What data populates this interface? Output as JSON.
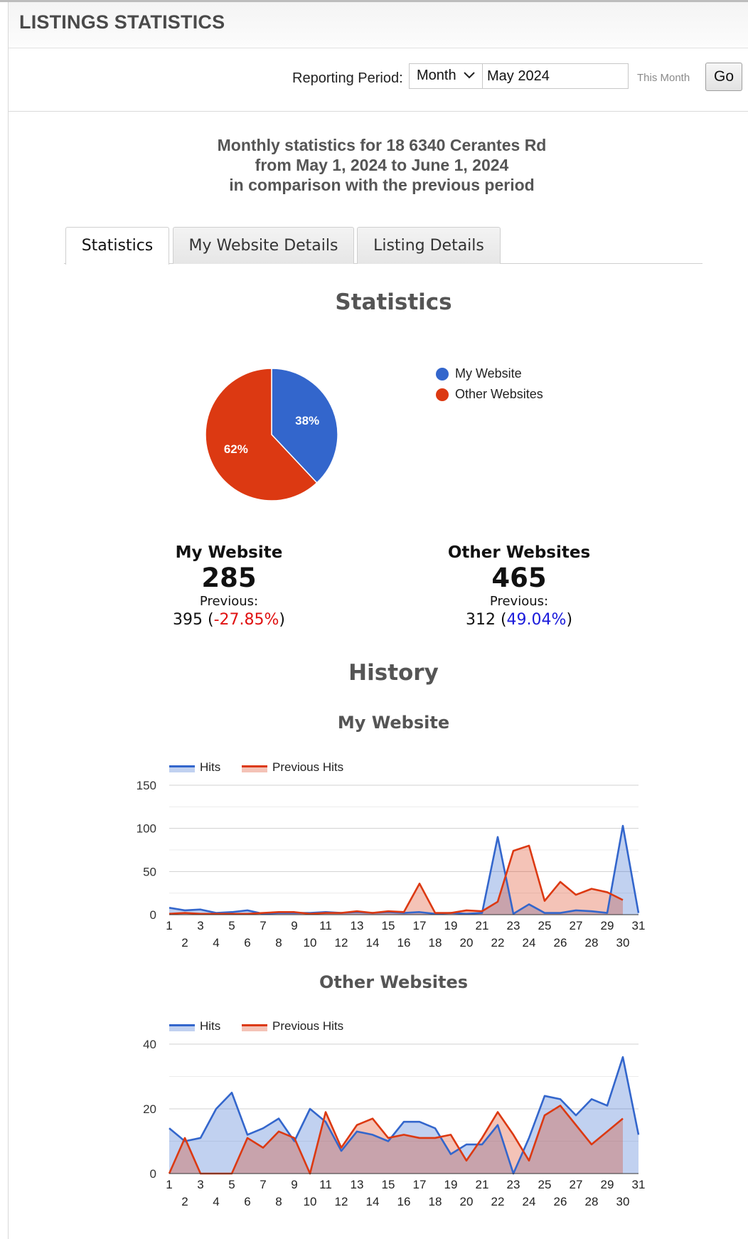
{
  "header": {
    "title": "LISTINGS STATISTICS"
  },
  "period": {
    "label": "Reporting Period:",
    "select_value": "Month",
    "date_value": "May 2024",
    "shortcut": "This Month",
    "go_label": "Go"
  },
  "summary": {
    "line1": "Monthly statistics for 18 6340 Cerantes Rd",
    "line2": "from May 1, 2024 to June 1, 2024",
    "line3": "in comparison with the previous period"
  },
  "tabs": [
    {
      "label": "Statistics",
      "active": true
    },
    {
      "label": "My Website Details",
      "active": false
    },
    {
      "label": "Listing Details",
      "active": false
    }
  ],
  "statistics": {
    "title": "Statistics",
    "legend": [
      {
        "label": "My Website",
        "color": "#3366cc"
      },
      {
        "label": "Other Websites",
        "color": "#dc3912"
      }
    ],
    "my_website": {
      "name": "My Website",
      "value": "285",
      "prev_label": "Previous:",
      "prev_value": "395",
      "change": "-27.85%"
    },
    "other_websites": {
      "name": "Other Websites",
      "value": "465",
      "prev_label": "Previous:",
      "prev_value": "312",
      "change": "49.04%"
    }
  },
  "history": {
    "title": "History"
  },
  "chart_data": [
    {
      "type": "pie",
      "labels": [
        "My Website",
        "Other Websites"
      ],
      "values": [
        38,
        62
      ],
      "value_labels": [
        "38%",
        "62%"
      ],
      "colors": [
        "#3366cc",
        "#dc3912"
      ],
      "legend": "right"
    },
    {
      "type": "area",
      "title": "My Website",
      "x": [
        1,
        2,
        3,
        4,
        5,
        6,
        7,
        8,
        9,
        10,
        11,
        12,
        13,
        14,
        15,
        16,
        17,
        18,
        19,
        20,
        21,
        22,
        23,
        24,
        25,
        26,
        27,
        28,
        29,
        30,
        31
      ],
      "series": [
        {
          "name": "Hits",
          "color": "#3366cc",
          "values": [
            8,
            5,
            6,
            2,
            3,
            5,
            1,
            2,
            2,
            2,
            3,
            2,
            3,
            2,
            3,
            2,
            3,
            1,
            2,
            1,
            2,
            90,
            1,
            12,
            2,
            2,
            5,
            4,
            2,
            103,
            2
          ]
        },
        {
          "name": "Previous Hits",
          "color": "#dc3912",
          "values": [
            1,
            2,
            1,
            1,
            1,
            1,
            2,
            3,
            3,
            1,
            2,
            2,
            4,
            2,
            4,
            3,
            36,
            2,
            2,
            5,
            4,
            15,
            74,
            80,
            16,
            38,
            23,
            30,
            26,
            17,
            null
          ]
        }
      ],
      "ylim": [
        0,
        150
      ],
      "yticks": [
        0,
        50,
        100,
        150
      ],
      "legend": "top"
    },
    {
      "type": "area",
      "title": "Other Websites",
      "x": [
        1,
        2,
        3,
        4,
        5,
        6,
        7,
        8,
        9,
        10,
        11,
        12,
        13,
        14,
        15,
        16,
        17,
        18,
        19,
        20,
        21,
        22,
        23,
        24,
        25,
        26,
        27,
        28,
        29,
        30,
        31
      ],
      "series": [
        {
          "name": "Hits",
          "color": "#3366cc",
          "values": [
            14,
            10,
            11,
            20,
            25,
            12,
            14,
            17,
            10,
            20,
            16,
            7,
            13,
            12,
            10,
            16,
            16,
            14,
            6,
            9,
            9,
            15,
            0,
            11,
            24,
            23,
            18,
            23,
            21,
            36,
            12
          ]
        },
        {
          "name": "Previous Hits",
          "color": "#dc3912",
          "values": [
            0,
            11,
            0,
            0,
            0,
            11,
            8,
            13,
            11,
            0,
            19,
            8,
            15,
            17,
            11,
            12,
            11,
            11,
            12,
            4,
            11,
            19,
            12,
            4,
            18,
            21,
            15,
            9,
            13,
            17,
            null
          ]
        }
      ],
      "ylim": [
        0,
        40
      ],
      "yticks": [
        0,
        20,
        40
      ],
      "legend": "top"
    }
  ]
}
